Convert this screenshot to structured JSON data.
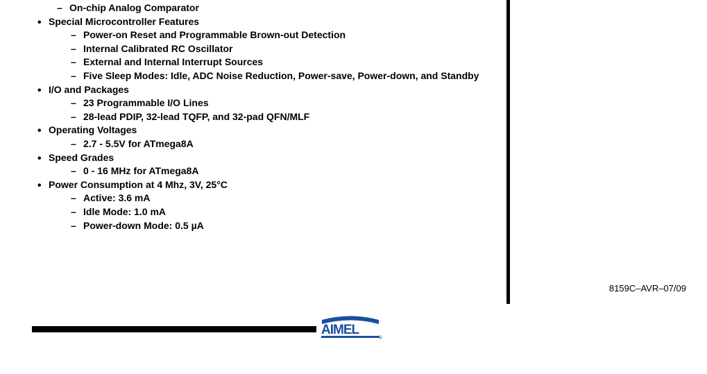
{
  "orphan_sub": "On-chip Analog Comparator",
  "sections": [
    {
      "title": "Special Microcontroller Features",
      "items": [
        "Power-on Reset and Programmable Brown-out Detection",
        "Internal Calibrated RC Oscillator",
        "External and Internal Interrupt Sources",
        "Five Sleep Modes: Idle, ADC Noise Reduction, Power-save, Power-down, and Standby"
      ]
    },
    {
      "title": "I/O and Packages",
      "items": [
        "23 Programmable I/O Lines",
        "28-lead PDIP, 32-lead TQFP, and 32-pad QFN/MLF"
      ]
    },
    {
      "title": "Operating Voltages",
      "items": [
        "2.7 - 5.5V for ATmega8A"
      ]
    },
    {
      "title": "Speed Grades",
      "items": [
        "0 - 16 MHz for ATmega8A"
      ]
    },
    {
      "title": "Power Consumption at 4 Mhz, 3V, 25°C",
      "items": [
        "Active: 3.6 mA",
        "Idle Mode: 1.0 mA",
        "Power-down Mode: 0.5 µA"
      ]
    }
  ],
  "doc_number": "8159C–AVR–07/09",
  "logo_text": "ATMEL",
  "logo_color": "#1a4fa0",
  "logo_underline_color": "#1a4fa0"
}
